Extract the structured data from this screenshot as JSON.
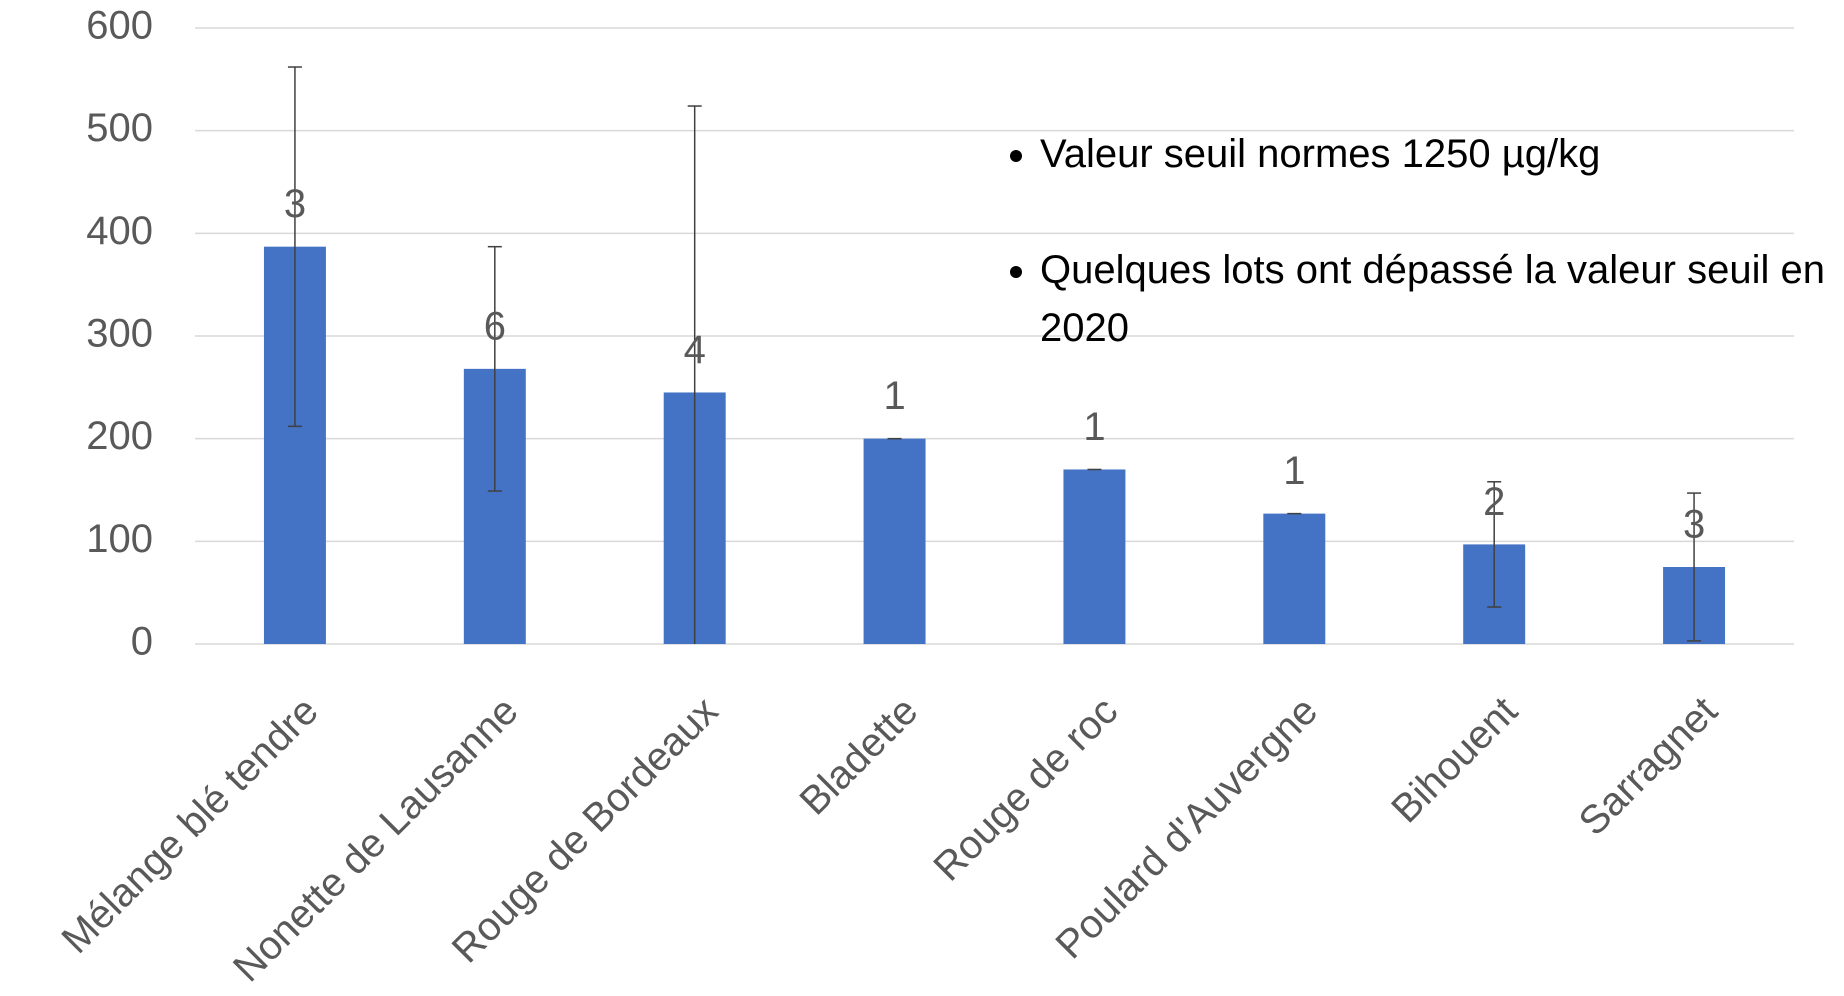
{
  "chart_data": {
    "type": "bar",
    "categories": [
      "Mélange blé tendre",
      "Nonette de Lausanne",
      "Rouge de Bordeaux",
      "Bladette",
      "Rouge de roc",
      "Poulard d'Auvergne",
      "Bihouent",
      "Sarragnet"
    ],
    "values": [
      387,
      268,
      245,
      200,
      170,
      127,
      97,
      75
    ],
    "errors": [
      175,
      119,
      279,
      0,
      0,
      0,
      61,
      72
    ],
    "bar_labels": [
      3,
      6,
      4,
      1,
      1,
      1,
      2,
      3
    ],
    "color": "#4472c4",
    "ylim": [
      0,
      600
    ],
    "yticks": [
      0,
      100,
      200,
      300,
      400,
      500,
      600
    ],
    "grid": true,
    "notes": [
      "Valeur seuil normes 1250 µg/kg",
      "Quelques lots ont dépassé la valeur seuil en 2020"
    ]
  }
}
